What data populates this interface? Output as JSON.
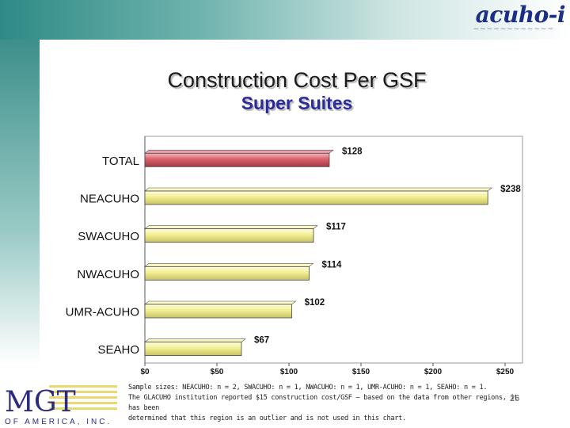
{
  "header": {
    "logo_text": "acuho-i",
    "logo_tagline": "~~~~~~~~~~~~"
  },
  "title": "Construction Cost Per GSF",
  "subtitle": "Super Suites",
  "chart_data": {
    "type": "bar",
    "orientation": "horizontal",
    "categories": [
      "TOTAL",
      "NEACUHO",
      "SWACUHO",
      "NWACUHO",
      "UMR-ACUHO",
      "SEAHO"
    ],
    "values": [
      128,
      238,
      117,
      114,
      102,
      67
    ],
    "value_labels": [
      "$128",
      "$238",
      "$117",
      "$114",
      "$102",
      "$67"
    ],
    "xticks": [
      "$0",
      "$50",
      "$100",
      "$150",
      "$200",
      "$250"
    ],
    "xlim": [
      0,
      250
    ],
    "colors": {
      "TOTAL": "#d9606b",
      "default": "#f2ee92"
    },
    "grid": false
  },
  "footer": {
    "note_line1": "Sample sizes:  NEACUHO: n = 2, SWACUHO: n = 1,  NWACUHO: n = 1, UMR-ACUHO: n = 1, SEAHO: n = 1.",
    "note_line2": "The GLACUHO institution reported $15 construction cost/GSF – based on the data from other regions, it has been",
    "note_line3": "determined that this region is an outlier and is not used in this chart.",
    "page_number": "26",
    "mgt_logo_text": "MGT",
    "mgt_logo_sub": "OF AMERICA, INC."
  }
}
